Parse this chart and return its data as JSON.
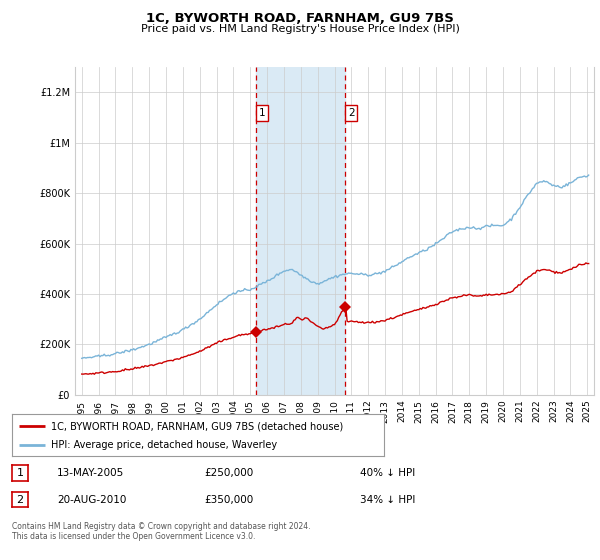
{
  "title": "1C, BYWORTH ROAD, FARNHAM, GU9 7BS",
  "subtitle": "Price paid vs. HM Land Registry's House Price Index (HPI)",
  "legend_line1": "1C, BYWORTH ROAD, FARNHAM, GU9 7BS (detached house)",
  "legend_line2": "HPI: Average price, detached house, Waverley",
  "sale1_date": "13-MAY-2005",
  "sale1_price": "£250,000",
  "sale1_hpi": "40% ↓ HPI",
  "sale2_date": "20-AUG-2010",
  "sale2_price": "£350,000",
  "sale2_hpi": "34% ↓ HPI",
  "footnote": "Contains HM Land Registry data © Crown copyright and database right 2024.\nThis data is licensed under the Open Government Licence v3.0.",
  "hpi_color": "#7ab4d8",
  "price_color": "#cc0000",
  "highlight_color": "#daeaf5",
  "vline_color": "#cc0000",
  "grid_color": "#cccccc",
  "background_color": "#ffffff",
  "ylim": [
    0,
    1300000
  ],
  "yticks": [
    0,
    200000,
    400000,
    600000,
    800000,
    1000000,
    1200000
  ],
  "ytick_labels": [
    "£0",
    "£200K",
    "£400K",
    "£600K",
    "£800K",
    "£1M",
    "£1.2M"
  ],
  "sale1_x": 2005.37,
  "sale1_y": 250000,
  "sale2_x": 2010.64,
  "sale2_y": 350000,
  "xmin": 1994.6,
  "xmax": 2025.4
}
